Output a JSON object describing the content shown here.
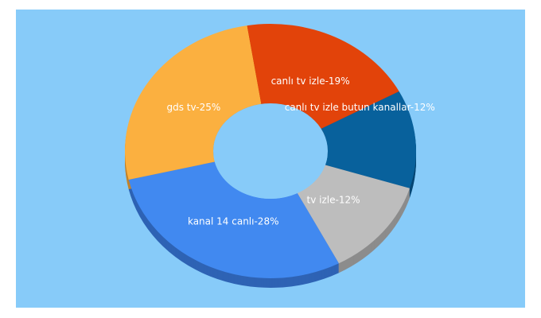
{
  "background_color": "#87cbf9",
  "chart_data": {
    "type": "pie",
    "variant": "3d-donut",
    "slices": [
      {
        "label": "canlı tv izle butun kanallar-12%",
        "value": 12,
        "color": "#08619c",
        "side_color": "#064774"
      },
      {
        "label": "tv izle-12%",
        "value": 12,
        "color": "#bdbdbd",
        "side_color": "#8c8c8c"
      },
      {
        "label": "kanal 14 canlı-28%",
        "value": 28,
        "color": "#4189f0",
        "side_color": "#2e63b4"
      },
      {
        "label": "gds tv-25%",
        "value": 25,
        "color": "#fbb040",
        "side_color": "#c2832b"
      },
      {
        "label": "canlı tv izle-19%",
        "value": 19,
        "color": "#e2430a",
        "side_color": "#a82f06"
      }
    ]
  }
}
